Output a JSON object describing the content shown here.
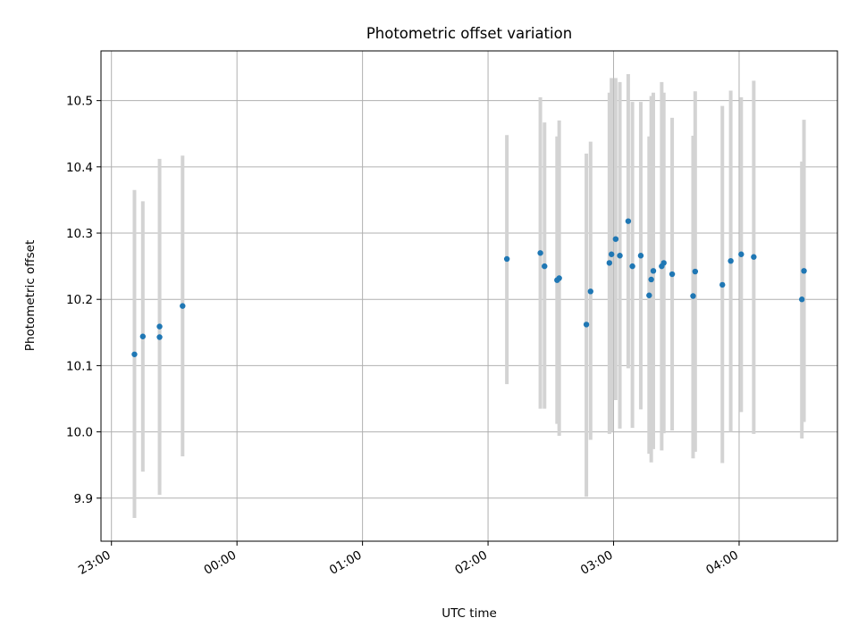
{
  "chart_data": {
    "type": "scatter",
    "title": "Photometric offset variation",
    "xlabel": "UTC time",
    "ylabel": "Photometric offset",
    "x_axis_type": "time",
    "x_units": "UTC",
    "xlim": [
      "22:55",
      "04:47"
    ],
    "ylim": [
      9.835,
      10.575
    ],
    "x_ticks": [
      {
        "time": "23:00",
        "label": "23:00"
      },
      {
        "time": "24:00",
        "label": "00:00"
      },
      {
        "time": "25:00",
        "label": "01:00"
      },
      {
        "time": "26:00",
        "label": "02:00"
      },
      {
        "time": "27:00",
        "label": "03:00"
      },
      {
        "time": "28:00",
        "label": "04:00"
      }
    ],
    "y_ticks": [
      {
        "value": 9.9,
        "label": "9.9"
      },
      {
        "value": 10.0,
        "label": "10.0"
      },
      {
        "value": 10.1,
        "label": "10.1"
      },
      {
        "value": 10.2,
        "label": "10.2"
      },
      {
        "value": 10.3,
        "label": "10.3"
      },
      {
        "value": 10.4,
        "label": "10.4"
      },
      {
        "value": 10.5,
        "label": "10.5"
      }
    ],
    "grid": true,
    "legend": false,
    "marker_color": "#1f77b4",
    "errorbar_color": "#d3d3d3",
    "series": [
      {
        "points": [
          {
            "time": "23:11",
            "y": 10.117,
            "low": 9.87,
            "high": 10.365
          },
          {
            "time": "23:15",
            "y": 10.144,
            "low": 9.94,
            "high": 10.348
          },
          {
            "time": "23:23",
            "y": 10.143,
            "low": 9.92,
            "high": 10.367
          },
          {
            "time": "23:23",
            "y": 10.159,
            "low": 9.905,
            "high": 10.412
          },
          {
            "time": "23:34",
            "y": 10.19,
            "low": 9.963,
            "high": 10.417
          },
          {
            "time": "02:09",
            "y": 10.261,
            "low": 10.072,
            "high": 10.448
          },
          {
            "time": "02:25",
            "y": 10.27,
            "low": 10.035,
            "high": 10.505
          },
          {
            "time": "02:27",
            "y": 10.25,
            "low": 10.035,
            "high": 10.467
          },
          {
            "time": "02:33",
            "y": 10.229,
            "low": 10.012,
            "high": 10.446
          },
          {
            "time": "02:34",
            "y": 10.232,
            "low": 9.994,
            "high": 10.47
          },
          {
            "time": "02:47",
            "y": 10.162,
            "low": 9.902,
            "high": 10.42
          },
          {
            "time": "02:49",
            "y": 10.212,
            "low": 9.988,
            "high": 10.438
          },
          {
            "time": "02:58",
            "y": 10.255,
            "low": 9.997,
            "high": 10.512
          },
          {
            "time": "02:59",
            "y": 10.268,
            "low": 10.0,
            "high": 10.534
          },
          {
            "time": "03:01",
            "y": 10.291,
            "low": 10.048,
            "high": 10.534
          },
          {
            "time": "03:03",
            "y": 10.266,
            "low": 10.005,
            "high": 10.528
          },
          {
            "time": "03:07",
            "y": 10.318,
            "low": 10.096,
            "high": 10.54
          },
          {
            "time": "03:09",
            "y": 10.25,
            "low": 10.006,
            "high": 10.498
          },
          {
            "time": "03:13",
            "y": 10.266,
            "low": 10.034,
            "high": 10.498
          },
          {
            "time": "03:17",
            "y": 10.206,
            "low": 9.967,
            "high": 10.446
          },
          {
            "time": "03:18",
            "y": 10.23,
            "low": 9.954,
            "high": 10.507
          },
          {
            "time": "03:19",
            "y": 10.243,
            "low": 9.974,
            "high": 10.512
          },
          {
            "time": "03:23",
            "y": 10.25,
            "low": 9.972,
            "high": 10.528
          },
          {
            "time": "03:24",
            "y": 10.255,
            "low": 9.998,
            "high": 10.512
          },
          {
            "time": "03:28",
            "y": 10.238,
            "low": 10.002,
            "high": 10.474
          },
          {
            "time": "03:38",
            "y": 10.205,
            "low": 9.96,
            "high": 10.447
          },
          {
            "time": "03:39",
            "y": 10.242,
            "low": 9.97,
            "high": 10.514
          },
          {
            "time": "03:52",
            "y": 10.222,
            "low": 9.953,
            "high": 10.492
          },
          {
            "time": "03:56",
            "y": 10.258,
            "low": 10.0,
            "high": 10.515
          },
          {
            "time": "04:01",
            "y": 10.268,
            "low": 10.03,
            "high": 10.505
          },
          {
            "time": "04:07",
            "y": 10.264,
            "low": 9.997,
            "high": 10.53
          },
          {
            "time": "04:30",
            "y": 10.2,
            "low": 9.99,
            "high": 10.408
          },
          {
            "time": "04:31",
            "y": 10.243,
            "low": 10.015,
            "high": 10.471
          }
        ]
      }
    ]
  }
}
